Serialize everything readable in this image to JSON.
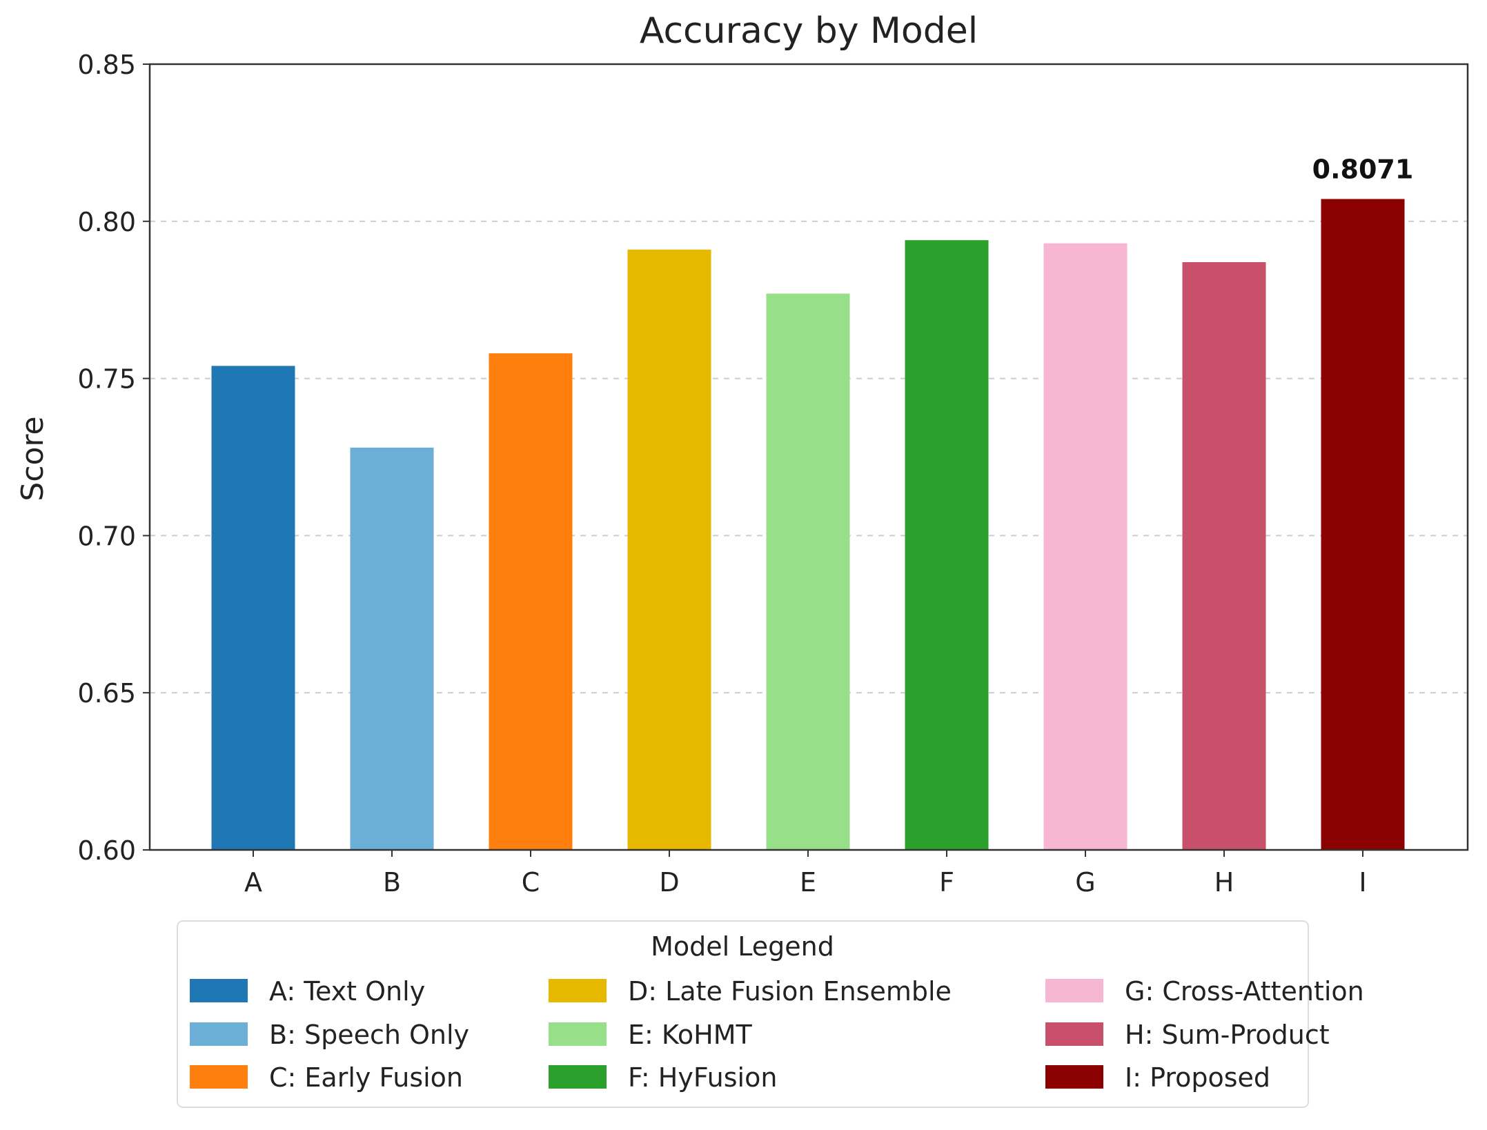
{
  "chart_data": {
    "type": "bar",
    "title": "Accuracy by Model",
    "xlabel": "",
    "ylabel": "Score",
    "ylim": [
      0.6,
      0.85
    ],
    "yticks": [
      "0.60",
      "0.65",
      "0.70",
      "0.75",
      "0.80",
      "0.85"
    ],
    "grid": "horizontal dashed",
    "categories": [
      "A",
      "B",
      "C",
      "D",
      "E",
      "F",
      "G",
      "H",
      "I"
    ],
    "values": [
      0.754,
      0.728,
      0.758,
      0.791,
      0.777,
      0.794,
      0.793,
      0.787,
      0.8071
    ],
    "colors": [
      "#1f77b4",
      "#6baed6",
      "#ff7f0e",
      "#e6b800",
      "#98df8a",
      "#2ca02c",
      "#f7b6d2",
      "#c9506a",
      "#8b0000"
    ],
    "data_labels": [
      {
        "category": "I",
        "text": "0.8071"
      }
    ],
    "legend": {
      "title": "Model Legend",
      "placement": "bottom",
      "entries": [
        "A: Text Only",
        "B: Speech Only",
        "C: Early Fusion",
        "D: Late Fusion Ensemble",
        "E: KoHMT",
        "F: HyFusion",
        "G: Cross-Attention",
        "H: Sum-Product",
        "I: Proposed"
      ]
    }
  }
}
